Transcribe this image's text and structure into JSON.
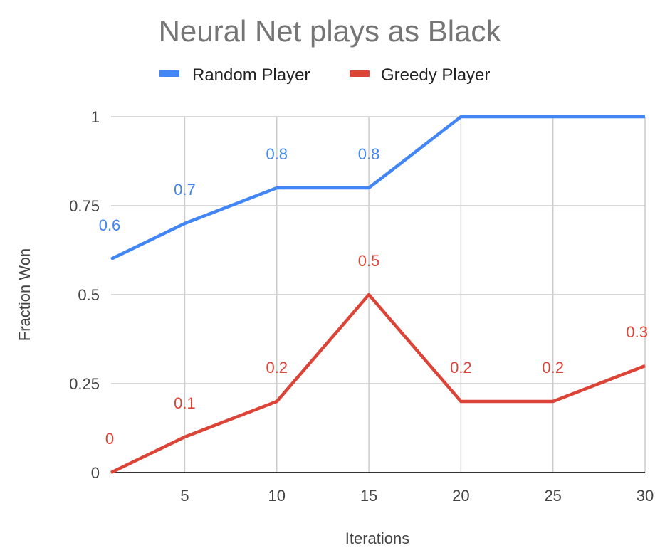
{
  "chart_data": {
    "type": "line",
    "title": "Neural Net plays as Black",
    "xlabel": "Iterations",
    "ylabel": "Fraction Won",
    "x": [
      1,
      5,
      10,
      15,
      20,
      25,
      30
    ],
    "xlim": [
      1,
      30
    ],
    "ylim": [
      0,
      1
    ],
    "x_ticks": [
      "5",
      "10",
      "15",
      "20",
      "25",
      "30"
    ],
    "y_ticks": [
      "0",
      "0.25",
      "0.5",
      "0.75",
      "1"
    ],
    "grid": true,
    "legend_position": "top",
    "series": [
      {
        "name": "Random Player",
        "color": "#4285F4",
        "values": [
          0.6,
          0.7,
          0.8,
          0.8,
          1,
          1,
          1
        ],
        "data_labels": [
          "0.6",
          "0.7",
          "0.8",
          "0.8",
          "",
          "",
          ""
        ]
      },
      {
        "name": "Greedy Player",
        "color": "#DB4437",
        "values": [
          0,
          0.1,
          0.2,
          0.5,
          0.2,
          0.2,
          0.3
        ],
        "data_labels": [
          "0",
          "0.1",
          "0.2",
          "0.5",
          "0.2",
          "0.2",
          "0.3"
        ]
      }
    ]
  }
}
